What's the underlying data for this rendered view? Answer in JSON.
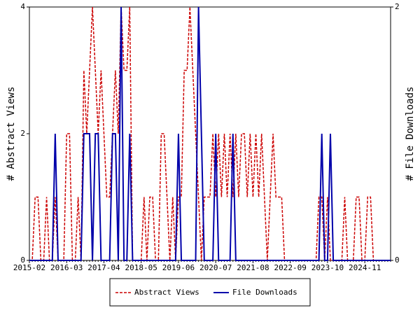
{
  "chart_data": {
    "type": "line",
    "y_label": "# Abstract Views",
    "y2_label": "# File Downloads",
    "categories": [
      "2015-02",
      null,
      null,
      null,
      null,
      null,
      null,
      null,
      null,
      null,
      null,
      null,
      null,
      "2016-03",
      null,
      null,
      null,
      null,
      null,
      null,
      null,
      null,
      null,
      null,
      null,
      null,
      "2017-04",
      null,
      null,
      null,
      null,
      null,
      null,
      null,
      null,
      null,
      null,
      null,
      null,
      "2018-05",
      null,
      null,
      null,
      null,
      null,
      null,
      null,
      null,
      null,
      null,
      null,
      null,
      "2019-06",
      null,
      null,
      null,
      null,
      null,
      null,
      null,
      null,
      null,
      null,
      null,
      null,
      "2020-07",
      null,
      null,
      null,
      null,
      null,
      null,
      null,
      null,
      null,
      null,
      null,
      null,
      "2021-08",
      null,
      null,
      null,
      null,
      null,
      null,
      null,
      null,
      null,
      null,
      null,
      null,
      "2022-09",
      null,
      null,
      null,
      null,
      null,
      null,
      null,
      null,
      null,
      null,
      null,
      null,
      "2023-10",
      null,
      null,
      null,
      null,
      null,
      null,
      null,
      null,
      null,
      null,
      null,
      null,
      "2024-11",
      null,
      null,
      null,
      null,
      null,
      null,
      null,
      null,
      null
    ],
    "series": [
      {
        "name": "Abstract Views",
        "color": "#cc0000",
        "dash": true,
        "values": [
          0,
          0,
          1,
          1,
          0,
          0,
          1,
          0,
          0,
          1,
          0,
          0,
          0,
          2,
          2,
          0,
          0,
          1,
          0,
          3,
          2,
          3,
          4,
          3,
          2,
          3,
          2,
          1,
          1,
          2,
          3,
          2,
          4,
          3,
          3,
          4,
          0,
          0,
          0,
          0,
          1,
          0,
          1,
          1,
          0,
          0,
          2,
          2,
          1,
          0,
          1,
          0,
          1,
          1,
          3,
          3,
          4,
          3,
          2,
          1,
          0,
          1,
          1,
          1,
          2,
          1,
          2,
          1,
          2,
          1,
          2,
          1,
          2,
          1,
          2,
          2,
          1,
          2,
          1,
          2,
          1,
          2,
          1,
          0,
          1,
          2,
          1,
          1,
          1,
          0,
          0,
          0,
          0,
          0,
          0,
          0,
          0,
          0,
          0,
          0,
          0,
          1,
          1,
          0,
          1,
          0,
          0,
          0,
          0,
          0,
          1,
          0,
          0,
          0,
          1,
          1,
          0,
          0,
          1,
          1,
          0,
          0,
          0,
          0,
          0,
          0,
          0
        ]
      },
      {
        "name": "File Downloads",
        "color": "#0000aa",
        "dash": false,
        "axis": "y2",
        "values": [
          0,
          0,
          0,
          0,
          0,
          0,
          0,
          0,
          0,
          1,
          0,
          0,
          0,
          0,
          0,
          0,
          0,
          0,
          0,
          1,
          1,
          1,
          0,
          1,
          1,
          0,
          0,
          0,
          0,
          1,
          1,
          0,
          2,
          0,
          0,
          1,
          0,
          0,
          0,
          0,
          0,
          0,
          0,
          0,
          0,
          0,
          0,
          0,
          0,
          0,
          0,
          0,
          1,
          0,
          0,
          0,
          0,
          0,
          0,
          2,
          1,
          0,
          0,
          0,
          0,
          1,
          0,
          0,
          0,
          0,
          0,
          1,
          0,
          0,
          0,
          0,
          0,
          0,
          0,
          0,
          0,
          0,
          0,
          0,
          0,
          0,
          0,
          0,
          0,
          0,
          0,
          0,
          0,
          0,
          0,
          0,
          0,
          0,
          0,
          0,
          0,
          0,
          1,
          0,
          0,
          1,
          0,
          0,
          0,
          0,
          0,
          0,
          0,
          0,
          0,
          0,
          0,
          0,
          0,
          0,
          0,
          0,
          0,
          0,
          0,
          0,
          0
        ]
      }
    ],
    "ylim": [
      0,
      4
    ],
    "yticks": [
      0,
      2,
      4
    ],
    "y2lim": [
      0,
      2
    ],
    "y2ticks": [
      0,
      2
    ],
    "legend": "bottom"
  }
}
